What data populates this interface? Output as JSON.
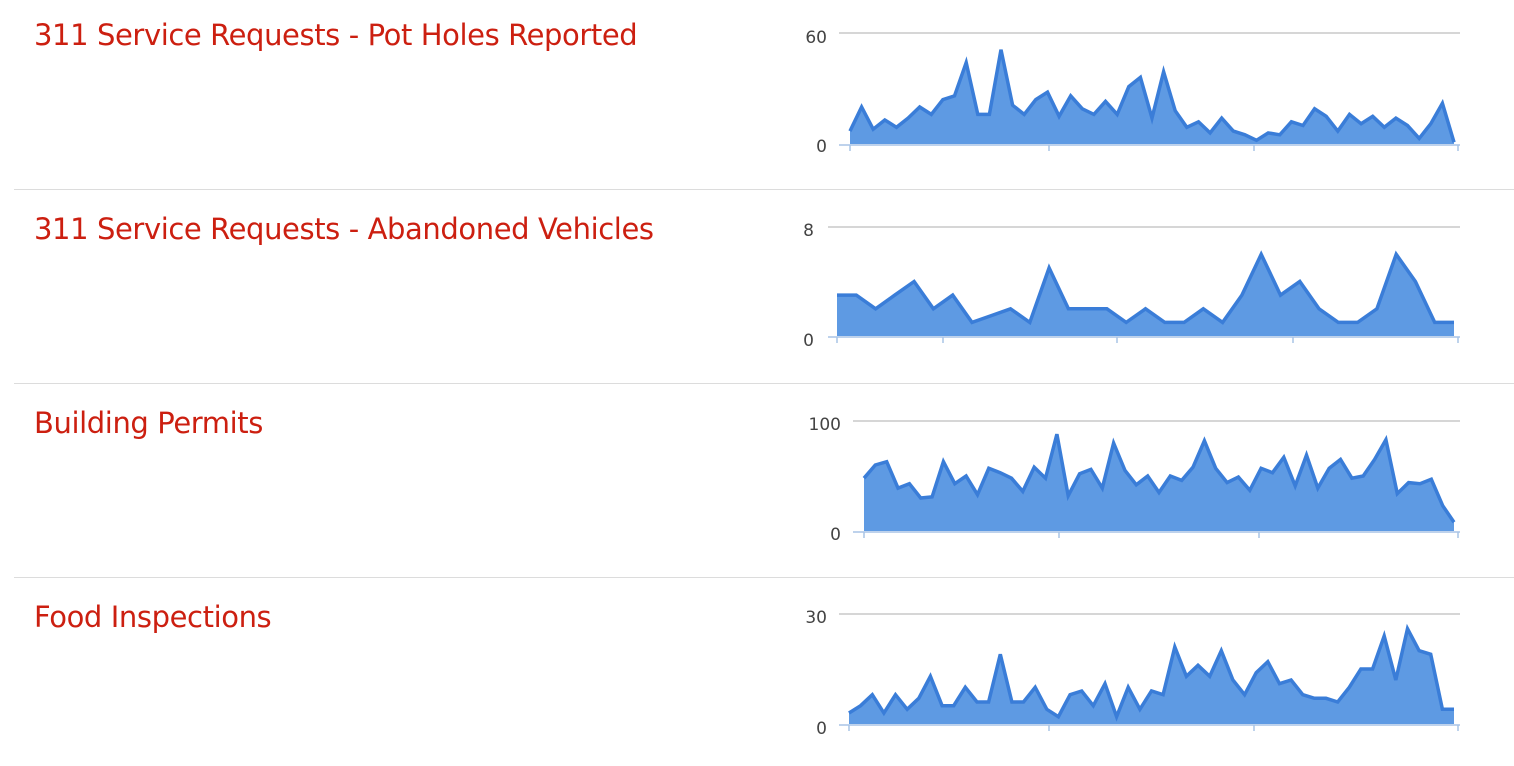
{
  "theme": {
    "title_color": "#cc1f10",
    "line_color": "#3a7dd8",
    "fill_color": "#5e9ae3",
    "grid_color": "#bdbdbd",
    "axis_color": "#a9c4e6",
    "divider_color": "#dcdcdc"
  },
  "datasets": [
    {
      "title": "311 Service Requests - Pot Holes Reported",
      "y_max_label": "60",
      "y_min_label": "0"
    },
    {
      "title": "311 Service Requests - Abandoned Vehicles",
      "y_max_label": "8",
      "y_min_label": "0"
    },
    {
      "title": "Building Permits",
      "y_max_label": "100",
      "y_min_label": "0"
    },
    {
      "title": "Food Inspections",
      "y_max_label": "30",
      "y_min_label": "0"
    }
  ],
  "chart_data": [
    {
      "type": "area",
      "ylim": [
        0,
        60
      ],
      "values": [
        7,
        20,
        8,
        13,
        9,
        14,
        20,
        16,
        24,
        26,
        44,
        16,
        16,
        51,
        21,
        16,
        24,
        28,
        15,
        26,
        19,
        16,
        23,
        16,
        31,
        36,
        14,
        39,
        18,
        9,
        12,
        6,
        14,
        7,
        5,
        2,
        6,
        5,
        12,
        10,
        19,
        15,
        7,
        16,
        11,
        15,
        9,
        14,
        10,
        3,
        11,
        22,
        1
      ]
    },
    {
      "type": "area",
      "ylim": [
        0,
        8
      ],
      "values": [
        3,
        3,
        2,
        3,
        4,
        2,
        3,
        1,
        1.5,
        2,
        1,
        5,
        2,
        2,
        2,
        1,
        2,
        1,
        1,
        2,
        1,
        3,
        6,
        3,
        4,
        2,
        1,
        1,
        2,
        6,
        4,
        1,
        1
      ]
    },
    {
      "type": "area",
      "ylim": [
        0,
        100
      ],
      "values": [
        48,
        60,
        63,
        39,
        43,
        30,
        31,
        63,
        43,
        50,
        33,
        57,
        53,
        48,
        36,
        58,
        48,
        88,
        32,
        52,
        56,
        39,
        80,
        55,
        42,
        50,
        35,
        50,
        46,
        58,
        82,
        57,
        44,
        49,
        37,
        57,
        53,
        67,
        41,
        69,
        39,
        57,
        65,
        48,
        50,
        65,
        83,
        34,
        44,
        43,
        47,
        23,
        8
      ]
    },
    {
      "type": "area",
      "ylim": [
        0,
        30
      ],
      "values": [
        3,
        5,
        8,
        3,
        8,
        4,
        7,
        13,
        5,
        5,
        10,
        6,
        6,
        19,
        6,
        6,
        10,
        4,
        2,
        8,
        9,
        5,
        11,
        2,
        10,
        4,
        9,
        8,
        21,
        13,
        16,
        13,
        20,
        12,
        8,
        14,
        17,
        11,
        12,
        8,
        7,
        7,
        6,
        10,
        15,
        15,
        24,
        12,
        26,
        20,
        19,
        4,
        4
      ]
    }
  ]
}
